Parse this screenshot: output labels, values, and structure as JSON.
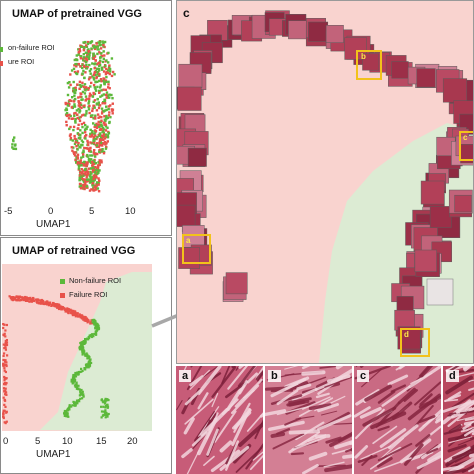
{
  "panel_top": {
    "title": "UMAP of pretrained VGG",
    "xlabel": "UMAP1",
    "xticks": [
      "-5",
      "0",
      "5",
      "10"
    ],
    "legend": [
      "on-failure ROI",
      "ure ROI"
    ]
  },
  "panel_bottom": {
    "title": "UMAP of retrained VGG",
    "xlabel": "UMAP1",
    "xticks": [
      "0",
      "5",
      "10",
      "15",
      "20"
    ],
    "legend": [
      "Non-failure ROI",
      "Failure ROI"
    ]
  },
  "panel_c": {
    "letter": "c",
    "roi_labels": [
      "a",
      "b",
      "c",
      "d"
    ],
    "insets": [
      "a",
      "b",
      "c",
      "d"
    ]
  },
  "colors": {
    "failure": "#e8524a",
    "non_failure": "#5cb83a",
    "failure_region": "#f9d3cf",
    "non_failure_region": "#dcebd3",
    "roi_box": "#f2c21b",
    "arrow": "#a8a8a8"
  }
}
